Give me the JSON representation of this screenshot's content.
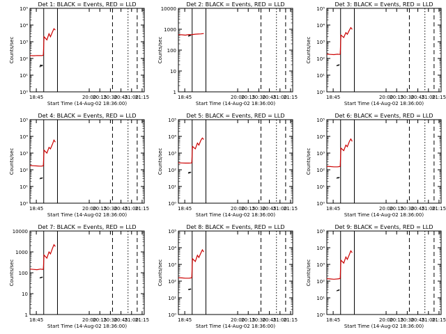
{
  "colors": {
    "events": "#000000",
    "lld": "#cc0000",
    "axes": "#000000",
    "background": "#ffffff"
  },
  "xaxis": {
    "label": "Start Time (14-Aug-02 18:36:00)",
    "ticks": [
      "18:45",
      "20:00",
      "20:15",
      "20:30",
      "20:45",
      "21:00",
      "21:15"
    ],
    "tick_minutes_from_start": [
      9,
      84,
      99,
      114,
      129,
      144,
      159
    ],
    "xlim_minutes": [
      0,
      162
    ]
  },
  "ylabel": "Counts/sec",
  "chart_data": [
    {
      "type": "line",
      "title": "Det 1: BLACK = Events, RED = LLD",
      "yscale": "log",
      "ylim": [
        1,
        100000
      ],
      "ytick_labels": [
        "10⁰",
        "10¹",
        "10²",
        "10³",
        "10⁴",
        "10⁵"
      ],
      "ytick_values": [
        1,
        10,
        100,
        1000,
        10000,
        100000
      ],
      "series": [
        {
          "name": "LLD",
          "color": "#cc0000",
          "x": [
            0,
            5,
            10,
            15,
            18,
            19,
            20,
            24,
            27,
            29,
            32,
            34,
            36
          ],
          "y": [
            150,
            145,
            150,
            148,
            150,
            160,
            2000,
            1300,
            3000,
            2000,
            4000,
            6000,
            5000
          ]
        },
        {
          "name": "Events",
          "color": "#000000",
          "x": [
            14,
            15,
            16,
            17,
            18
          ],
          "y": [
            30,
            40,
            35,
            40,
            35
          ]
        }
      ],
      "vlines": [
        {
          "x": 19.5,
          "style": "solid"
        },
        {
          "x": 39,
          "style": "solid"
        },
        {
          "x": 117,
          "style": "dashed"
        },
        {
          "x": 139,
          "style": "dotted"
        },
        {
          "x": 152,
          "style": "dashed"
        }
      ]
    },
    {
      "type": "line",
      "title": "Det 2: BLACK = Events, RED = LLD",
      "yscale": "log",
      "ylim": [
        1,
        10000
      ],
      "ytick_labels": [
        "1",
        "10",
        "100",
        "1000",
        "10000"
      ],
      "ytick_values": [
        1,
        10,
        100,
        1000,
        10000
      ],
      "series": [
        {
          "name": "LLD",
          "color": "#cc0000",
          "x": [
            0,
            5,
            10,
            15,
            18,
            19,
            20,
            24,
            28,
            32,
            36
          ],
          "y": [
            550,
            540,
            520,
            560,
            540,
            545,
            560,
            580,
            590,
            600,
            620
          ]
        },
        {
          "name": "Events",
          "color": "#000000",
          "x": [
            14,
            15,
            16,
            17,
            18
          ],
          "y": [
            450,
            500,
            480,
            520,
            500
          ]
        }
      ],
      "vlines": [
        {
          "x": 19.5,
          "style": "solid"
        },
        {
          "x": 39,
          "style": "solid"
        },
        {
          "x": 117,
          "style": "dashed"
        },
        {
          "x": 139,
          "style": "dotted"
        },
        {
          "x": 152,
          "style": "dashed"
        }
      ]
    },
    {
      "type": "line",
      "title": "Det 3: BLACK = Events, RED = LLD",
      "yscale": "log",
      "ylim": [
        1,
        100000
      ],
      "ytick_labels": [
        "10⁰",
        "10¹",
        "10²",
        "10³",
        "10⁴",
        "10⁵"
      ],
      "ytick_values": [
        1,
        10,
        100,
        1000,
        10000,
        100000
      ],
      "series": [
        {
          "name": "LLD",
          "color": "#cc0000",
          "x": [
            0,
            5,
            10,
            15,
            18,
            19,
            20,
            24,
            27,
            29,
            32,
            34,
            36
          ],
          "y": [
            180,
            175,
            170,
            180,
            175,
            180,
            2500,
            1800,
            3500,
            2800,
            5000,
            7000,
            5500
          ]
        },
        {
          "name": "Events",
          "color": "#000000",
          "x": [
            14,
            15,
            16,
            17,
            18
          ],
          "y": [
            35,
            40,
            38,
            42,
            40
          ]
        }
      ],
      "vlines": [
        {
          "x": 19.5,
          "style": "solid"
        },
        {
          "x": 39,
          "style": "solid"
        },
        {
          "x": 117,
          "style": "dashed"
        },
        {
          "x": 139,
          "style": "dotted"
        },
        {
          "x": 152,
          "style": "dashed"
        }
      ]
    },
    {
      "type": "line",
      "title": "Det 4: BLACK = Events, RED = LLD",
      "yscale": "log",
      "ylim": [
        1,
        100000
      ],
      "ytick_labels": [
        "10⁰",
        "10¹",
        "10²",
        "10³",
        "10⁴",
        "10⁵"
      ],
      "ytick_values": [
        1,
        10,
        100,
        1000,
        10000,
        100000
      ],
      "series": [
        {
          "name": "LLD",
          "color": "#cc0000",
          "x": [
            0,
            5,
            10,
            15,
            18,
            19,
            20,
            24,
            27,
            29,
            32,
            34,
            36
          ],
          "y": [
            180,
            175,
            170,
            165,
            170,
            175,
            1500,
            1000,
            2200,
            1800,
            3500,
            6000,
            4500
          ]
        },
        {
          "name": "Events",
          "color": "#000000",
          "x": [
            14,
            15,
            16,
            17,
            18
          ],
          "y": [
            28,
            32,
            30,
            33,
            31
          ]
        }
      ],
      "vlines": [
        {
          "x": 19.5,
          "style": "solid"
        },
        {
          "x": 39,
          "style": "solid"
        },
        {
          "x": 117,
          "style": "dashed"
        },
        {
          "x": 139,
          "style": "dotted"
        },
        {
          "x": 152,
          "style": "dashed"
        }
      ]
    },
    {
      "type": "line",
      "title": "Det 5: BLACK = Events, RED = LLD",
      "yscale": "log",
      "ylim": [
        1,
        100000
      ],
      "ytick_labels": [
        "10⁰",
        "10¹",
        "10²",
        "10³",
        "10⁴",
        "10⁵"
      ],
      "ytick_values": [
        1,
        10,
        100,
        1000,
        10000,
        100000
      ],
      "series": [
        {
          "name": "LLD",
          "color": "#cc0000",
          "x": [
            0,
            5,
            10,
            15,
            18,
            19,
            20,
            24,
            27,
            29,
            32,
            34,
            36
          ],
          "y": [
            260,
            255,
            250,
            250,
            255,
            260,
            2500,
            1800,
            4000,
            3000,
            6000,
            8000,
            6500
          ]
        },
        {
          "name": "Events",
          "color": "#000000",
          "x": [
            14,
            15,
            16,
            17,
            18
          ],
          "y": [
            60,
            70,
            65,
            72,
            68
          ]
        }
      ],
      "vlines": [
        {
          "x": 19.5,
          "style": "solid"
        },
        {
          "x": 39,
          "style": "solid"
        },
        {
          "x": 117,
          "style": "dashed"
        },
        {
          "x": 139,
          "style": "dotted"
        },
        {
          "x": 152,
          "style": "dashed"
        }
      ]
    },
    {
      "type": "line",
      "title": "Det 6: BLACK = Events, RED = LLD",
      "yscale": "log",
      "ylim": [
        1,
        100000
      ],
      "ytick_labels": [
        "10⁰",
        "10¹",
        "10²",
        "10³",
        "10⁴",
        "10⁵"
      ],
      "ytick_values": [
        1,
        10,
        100,
        1000,
        10000,
        100000
      ],
      "series": [
        {
          "name": "LLD",
          "color": "#cc0000",
          "x": [
            0,
            5,
            10,
            15,
            18,
            19,
            20,
            24,
            27,
            29,
            32,
            34,
            36
          ],
          "y": [
            160,
            155,
            150,
            150,
            155,
            160,
            2000,
            1400,
            3000,
            2400,
            5000,
            7000,
            5000
          ]
        },
        {
          "name": "Events",
          "color": "#000000",
          "x": [
            14,
            15,
            16,
            17,
            18
          ],
          "y": [
            30,
            34,
            32,
            35,
            33
          ]
        }
      ],
      "vlines": [
        {
          "x": 19.5,
          "style": "solid"
        },
        {
          "x": 39,
          "style": "solid"
        },
        {
          "x": 117,
          "style": "dashed"
        },
        {
          "x": 139,
          "style": "dotted"
        },
        {
          "x": 152,
          "style": "dashed"
        }
      ]
    },
    {
      "type": "line",
      "title": "Det 7: BLACK = Events, RED = LLD",
      "yscale": "log",
      "ylim": [
        1,
        10000
      ],
      "ytick_labels": [
        "1",
        "10",
        "100",
        "1000",
        "10000"
      ],
      "ytick_values": [
        1,
        10,
        100,
        1000,
        10000
      ],
      "series": [
        {
          "name": "LLD",
          "color": "#cc0000",
          "x": [
            0,
            5,
            10,
            15,
            18,
            19,
            20,
            24,
            27,
            29,
            32,
            34,
            36
          ],
          "y": [
            150,
            145,
            140,
            150,
            145,
            150,
            700,
            500,
            1000,
            800,
            1500,
            2200,
            1800
          ]
        },
        {
          "name": "Events",
          "color": "#000000",
          "x": [
            14,
            15,
            16,
            17,
            18
          ],
          "y": [
            55,
            60,
            58,
            62,
            60
          ]
        }
      ],
      "vlines": [
        {
          "x": 19.5,
          "style": "solid"
        },
        {
          "x": 39,
          "style": "solid"
        },
        {
          "x": 117,
          "style": "dashed"
        },
        {
          "x": 139,
          "style": "dotted"
        },
        {
          "x": 152,
          "style": "dashed"
        }
      ]
    },
    {
      "type": "line",
      "title": "Det 8: BLACK = Events, RED = LLD",
      "yscale": "log",
      "ylim": [
        1,
        100000
      ],
      "ytick_labels": [
        "10⁰",
        "10¹",
        "10²",
        "10³",
        "10⁴",
        "10⁵"
      ],
      "ytick_values": [
        1,
        10,
        100,
        1000,
        10000,
        100000
      ],
      "series": [
        {
          "name": "LLD",
          "color": "#cc0000",
          "x": [
            0,
            5,
            10,
            15,
            18,
            19,
            20,
            24,
            27,
            29,
            32,
            34,
            36
          ],
          "y": [
            160,
            155,
            150,
            150,
            155,
            160,
            2200,
            1500,
            3500,
            2600,
            5000,
            7500,
            5500
          ]
        },
        {
          "name": "Events",
          "color": "#000000",
          "x": [
            14,
            15,
            16,
            17,
            18
          ],
          "y": [
            30,
            33,
            31,
            34,
            32
          ]
        }
      ],
      "vlines": [
        {
          "x": 19.5,
          "style": "solid"
        },
        {
          "x": 39,
          "style": "solid"
        },
        {
          "x": 117,
          "style": "dashed"
        },
        {
          "x": 139,
          "style": "dotted"
        },
        {
          "x": 152,
          "style": "dashed"
        }
      ]
    },
    {
      "type": "line",
      "title": "Det 9: BLACK = Events, RED = LLD",
      "yscale": "log",
      "ylim": [
        1,
        100000
      ],
      "ytick_labels": [
        "10⁰",
        "10¹",
        "10²",
        "10³",
        "10⁴",
        "10⁵"
      ],
      "ytick_values": [
        1,
        10,
        100,
        1000,
        10000,
        100000
      ],
      "series": [
        {
          "name": "LLD",
          "color": "#cc0000",
          "x": [
            0,
            5,
            10,
            15,
            18,
            19,
            20,
            24,
            27,
            29,
            32,
            34,
            36
          ],
          "y": [
            140,
            135,
            130,
            135,
            140,
            145,
            1800,
            1200,
            2800,
            2000,
            4000,
            6500,
            5000
          ]
        },
        {
          "name": "Events",
          "color": "#000000",
          "x": [
            14,
            15,
            16,
            17,
            18
          ],
          "y": [
            25,
            28,
            27,
            30,
            28
          ]
        }
      ],
      "vlines": [
        {
          "x": 19.5,
          "style": "solid"
        },
        {
          "x": 39,
          "style": "solid"
        },
        {
          "x": 117,
          "style": "dashed"
        },
        {
          "x": 139,
          "style": "dotted"
        },
        {
          "x": 152,
          "style": "dashed"
        }
      ]
    }
  ]
}
